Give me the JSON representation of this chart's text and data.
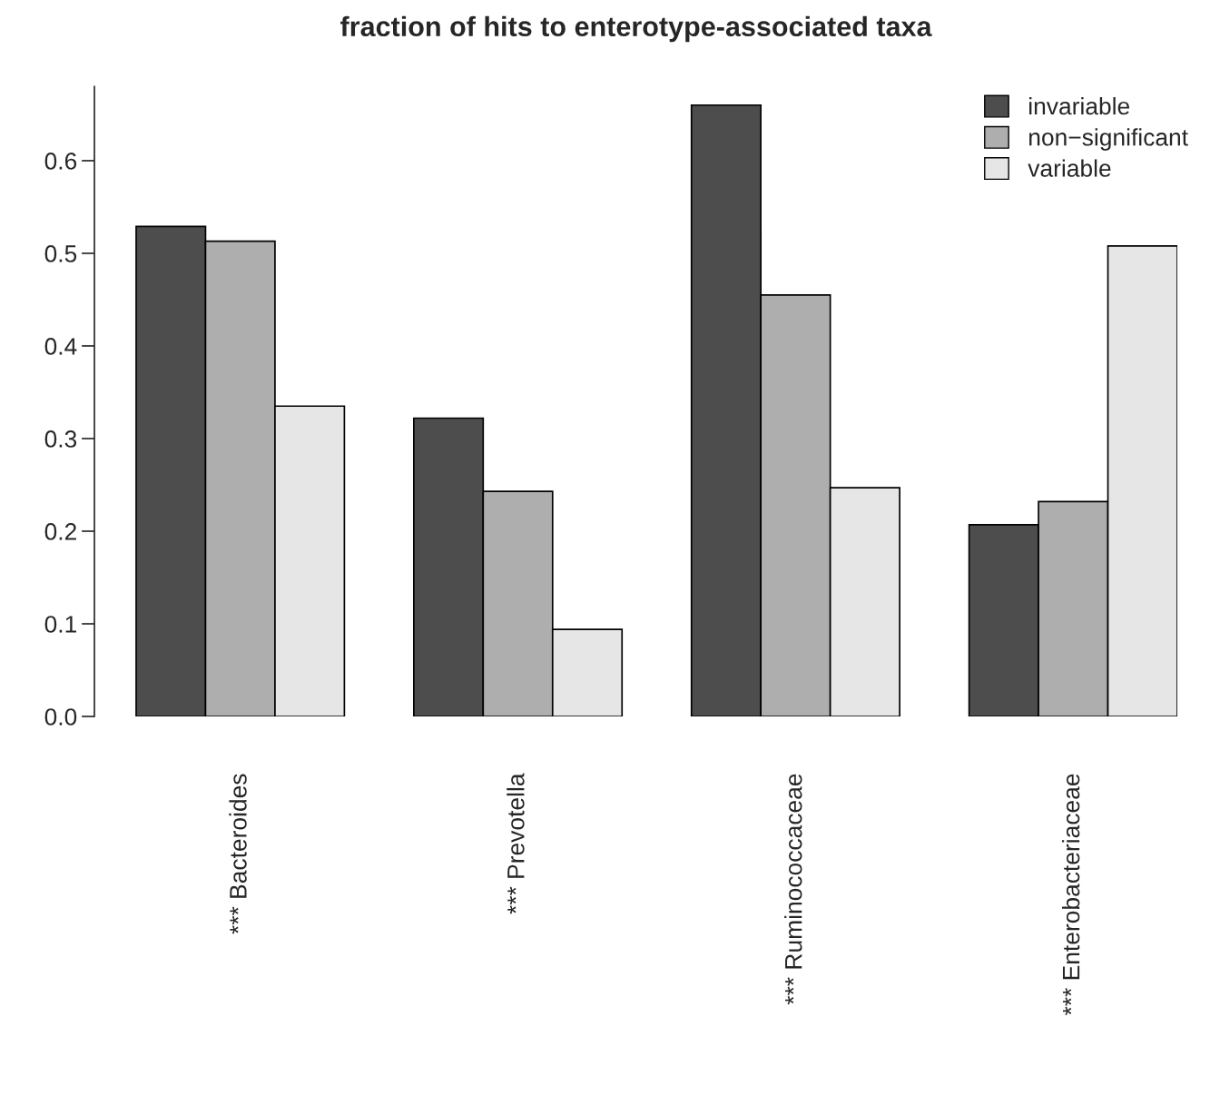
{
  "chart_data": {
    "type": "bar",
    "title": "fraction of hits to enterotype-associated taxa",
    "categories": [
      "*** Bacteroides",
      "*** Prevotella",
      "*** Ruminococcaceae",
      "*** Enterobacteriaceae"
    ],
    "series": [
      {
        "name": "invariable",
        "color": "#4d4d4d",
        "values": [
          0.529,
          0.322,
          0.66,
          0.207
        ]
      },
      {
        "name": "non−significant",
        "color": "#aeaeae",
        "values": [
          0.513,
          0.243,
          0.455,
          0.232
        ]
      },
      {
        "name": "variable",
        "color": "#e6e6e6",
        "values": [
          0.335,
          0.094,
          0.247,
          0.508
        ]
      }
    ],
    "ylim": [
      0,
      0.68
    ],
    "yticks": [
      {
        "value": 0,
        "label": "0.0"
      },
      0.1,
      0.2,
      0.3,
      0.4,
      0.5,
      0.6
    ],
    "grid": false,
    "legend": "top right"
  }
}
